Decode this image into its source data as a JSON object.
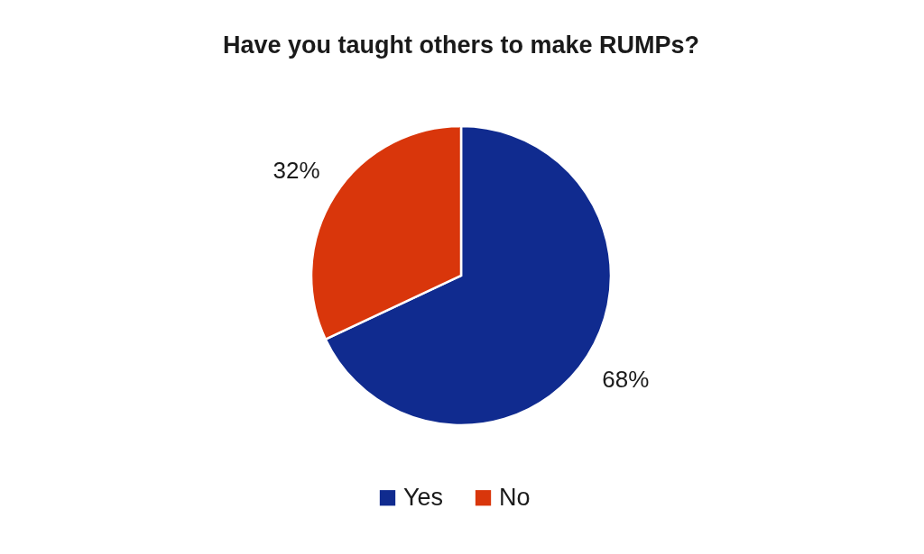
{
  "chart_data": {
    "type": "pie",
    "title": "Have you taught others to make RUMPs?",
    "categories": [
      "Yes",
      "No"
    ],
    "values": [
      68,
      32
    ],
    "colors": [
      "#102b8f",
      "#d9360b"
    ],
    "value_labels": [
      "68%",
      "32%"
    ],
    "legend": "bottom"
  }
}
